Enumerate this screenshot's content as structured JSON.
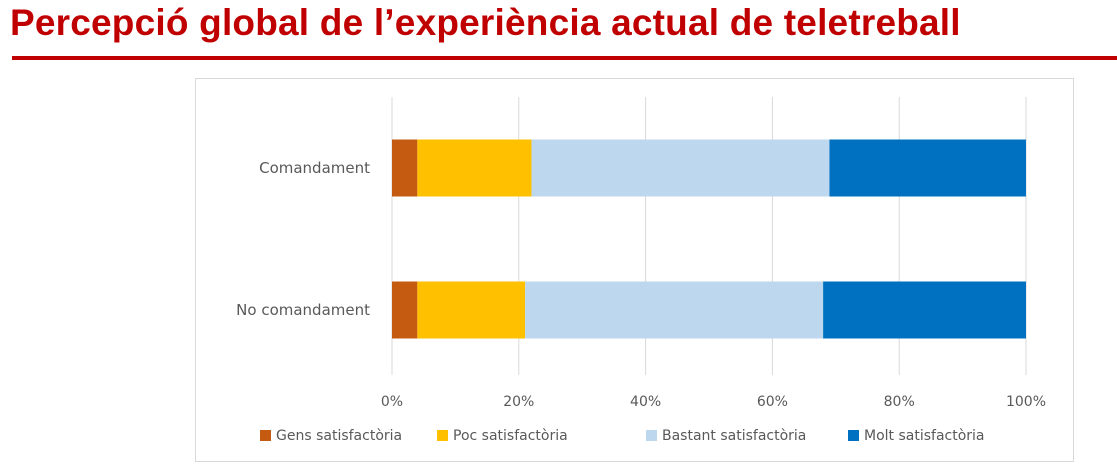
{
  "header": {
    "title": "Percepció global de l’experiència actual de teletreball",
    "rule_color": "#c00000"
  },
  "chart_data": {
    "type": "bar",
    "orientation": "horizontal",
    "stacked": "percent",
    "title": "",
    "categories": [
      "Comandament",
      "No comandament"
    ],
    "series": [
      {
        "name": "Gens satisfactòria",
        "color": "#c55a11",
        "values": [
          4,
          4
        ]
      },
      {
        "name": "Poc satisfactòria",
        "color": "#ffc000",
        "values": [
          18,
          17
        ]
      },
      {
        "name": "Bastant satisfactòria",
        "color": "#bdd7ee",
        "values": [
          47,
          47
        ]
      },
      {
        "name": "Molt satisfactòria",
        "color": "#0070c0",
        "values": [
          31,
          32
        ]
      }
    ],
    "xlim": [
      0,
      100
    ],
    "x_ticks": [
      "0%",
      "20%",
      "40%",
      "60%",
      "80%",
      "100%"
    ],
    "grid": true,
    "legend_position": "bottom"
  }
}
